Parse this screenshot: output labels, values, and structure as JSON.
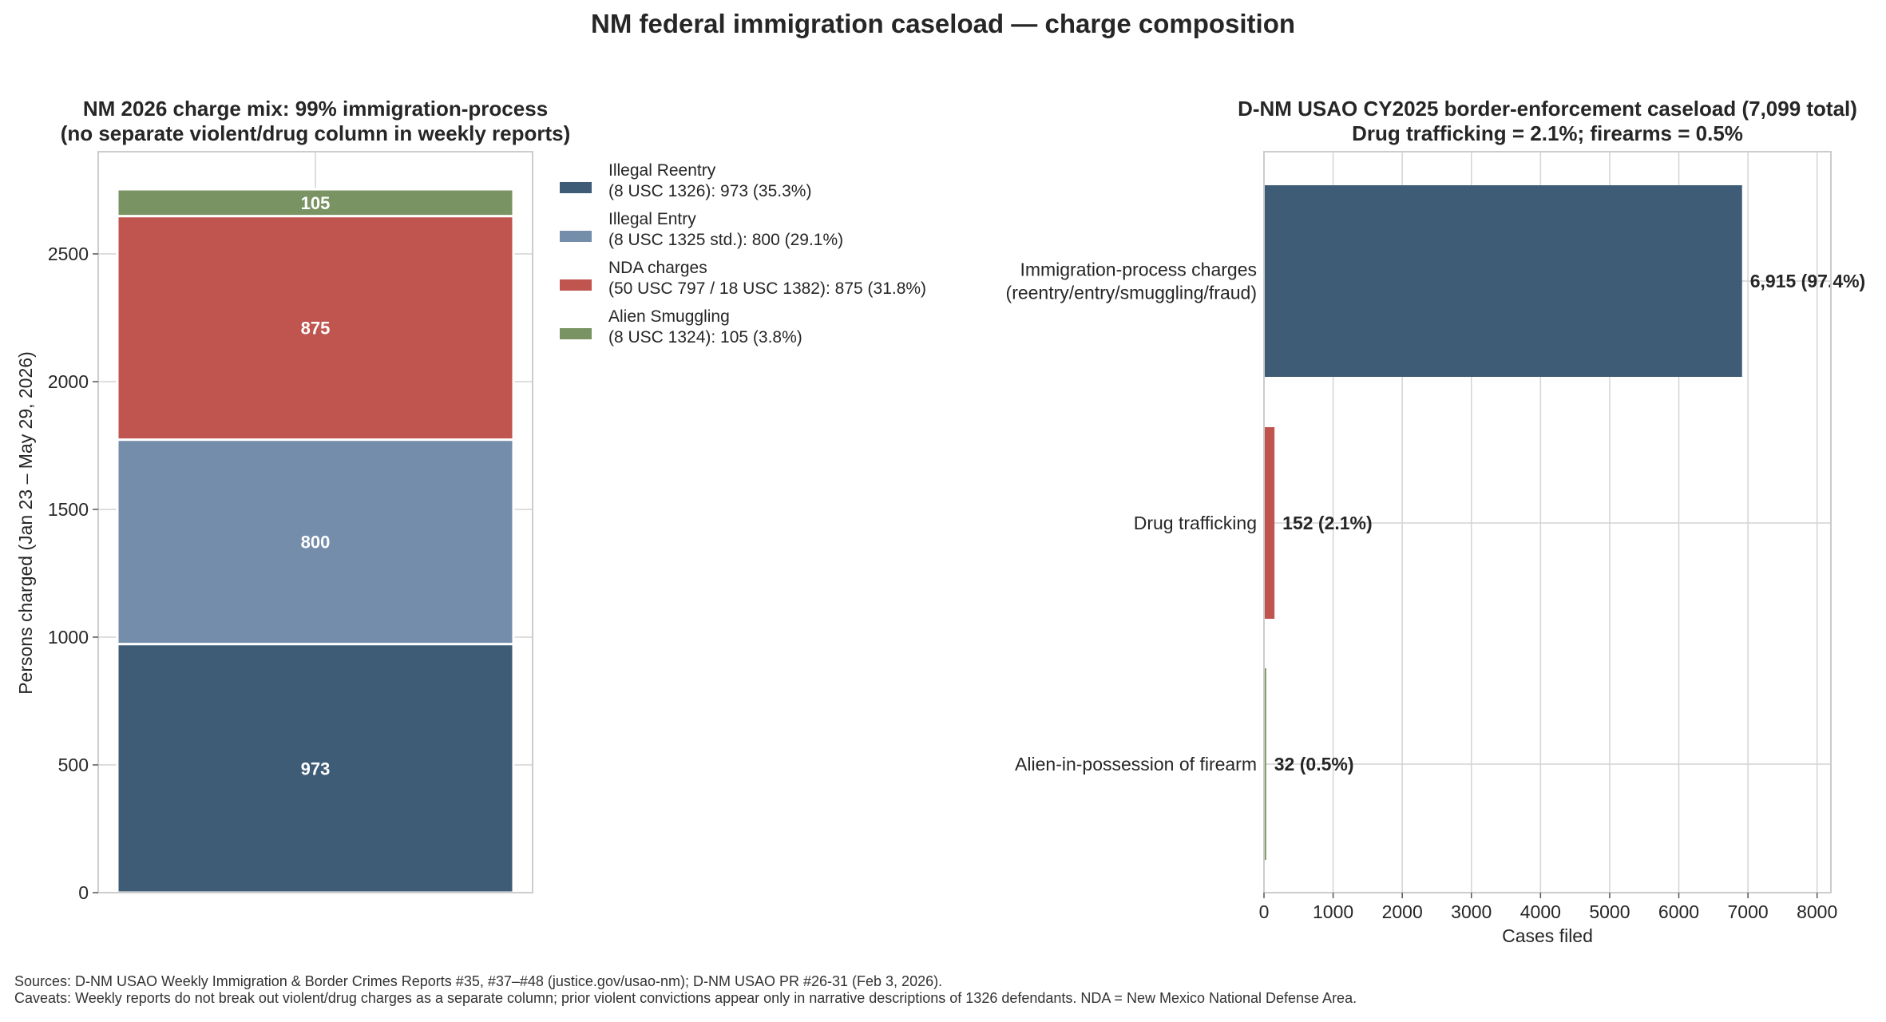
{
  "suptitle": "NM federal immigration caseload — charge composition",
  "sources": {
    "line1": "Sources: D-NM USAO Weekly Immigration & Border Crimes Reports #35, #37–#48 (justice.gov/usao-nm); D-NM USAO PR #26-31 (Feb 3, 2026).",
    "line2": "Caveats: Weekly reports do not break out violent/drug charges as a separate column; prior violent convictions appear only in narrative descriptions of 1326 defendants. NDA = New Mexico National Defense Area."
  },
  "chart_data": [
    {
      "type": "bar",
      "stacked": true,
      "title": [
        "NM 2026 charge mix: 99% immigration-process",
        "(no separate violent/drug column in weekly reports)"
      ],
      "xlabel": "",
      "ylabel": "Persons charged (Jan 23 – May 29, 2026)",
      "ylim": [
        0,
        2900
      ],
      "yticks": [
        0,
        500,
        1000,
        1500,
        2000,
        2500
      ],
      "grid": true,
      "legend_position": "outside-right",
      "series": [
        {
          "name": "Illegal Reentry",
          "legend_lines": [
            "Illegal Reentry",
            "(8 USC 1326): 973 (35.3%)"
          ],
          "value": 973,
          "label": "973",
          "color": "#3e5c76"
        },
        {
          "name": "Illegal Entry",
          "legend_lines": [
            "Illegal Entry",
            "(8 USC 1325 std.): 800 (29.1%)"
          ],
          "value": 800,
          "label": "800",
          "color": "#748dab"
        },
        {
          "name": "NDA charges",
          "legend_lines": [
            "NDA charges",
            "(50 USC 797 / 18 USC 1382): 875 (31.8%)"
          ],
          "value": 875,
          "label": "875",
          "color": "#c0544f"
        },
        {
          "name": "Alien Smuggling",
          "legend_lines": [
            "Alien Smuggling",
            "(8 USC 1324): 105 (3.8%)"
          ],
          "value": 105,
          "label": "105",
          "color": "#7a9362"
        }
      ]
    },
    {
      "type": "bar",
      "orientation": "horizontal",
      "title": [
        "D-NM USAO CY2025 border-enforcement caseload (7,099 total)",
        "Drug trafficking = 2.1%; firearms = 0.5%"
      ],
      "xlabel": "Cases filed",
      "ylabel": "",
      "xlim": [
        0,
        8200
      ],
      "xticks": [
        0,
        1000,
        2000,
        3000,
        4000,
        5000,
        6000,
        7000,
        8000
      ],
      "grid": true,
      "categories": [
        {
          "lines": [
            "Immigration-process charges",
            "(reentry/entry/smuggling/fraud)"
          ],
          "value": 6915,
          "label": "6,915 (97.4%)",
          "color": "#3e5c76"
        },
        {
          "lines": [
            "Drug trafficking"
          ],
          "value": 152,
          "label": "152 (2.1%)",
          "color": "#c0544f"
        },
        {
          "lines": [
            "Alien-in-possession of firearm"
          ],
          "value": 32,
          "label": "32 (0.5%)",
          "color": "#7a9362"
        }
      ]
    }
  ]
}
